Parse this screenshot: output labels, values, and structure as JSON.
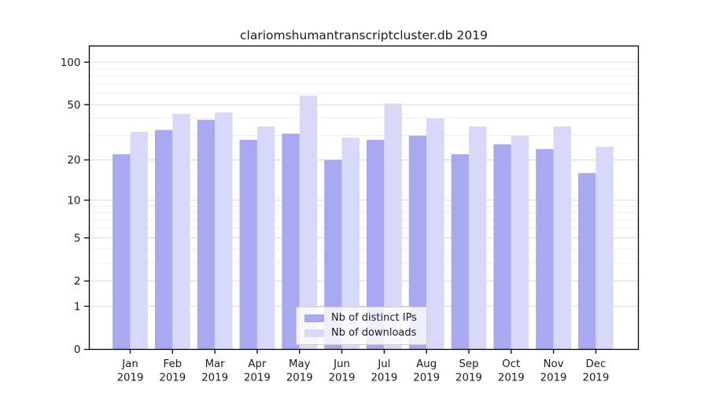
{
  "chart_data": {
    "type": "bar",
    "title": "clariomshumantranscriptcluster.db 2019",
    "year_label": "2019",
    "categories": [
      "Jan",
      "Feb",
      "Mar",
      "Apr",
      "May",
      "Jun",
      "Jul",
      "Aug",
      "Sep",
      "Oct",
      "Nov",
      "Dec"
    ],
    "series": [
      {
        "name": "Nb of distinct IPs",
        "color": "#a9a9f1",
        "values": [
          22,
          33,
          39,
          28,
          31,
          20,
          28,
          30,
          22,
          26,
          24,
          16
        ]
      },
      {
        "name": "Nb of downloads",
        "color": "#d8d8f8",
        "values": [
          32,
          43,
          44,
          35,
          58,
          29,
          51,
          40,
          35,
          30,
          35,
          25
        ]
      }
    ],
    "yscale": "log1p",
    "ylim": [
      0,
      130
    ],
    "yticks": [
      0,
      1,
      2,
      5,
      10,
      20,
      50,
      100
    ],
    "minor_gridlines": [
      3,
      4,
      6,
      7,
      8,
      9,
      30,
      40,
      60,
      70,
      80,
      90
    ],
    "grid": true,
    "legend_position": "bottom-center",
    "colors": {
      "major_grid": "#d9d9d9",
      "minor_grid": "#ededed",
      "axis": "#000000",
      "text": "#1a1a1a"
    }
  }
}
